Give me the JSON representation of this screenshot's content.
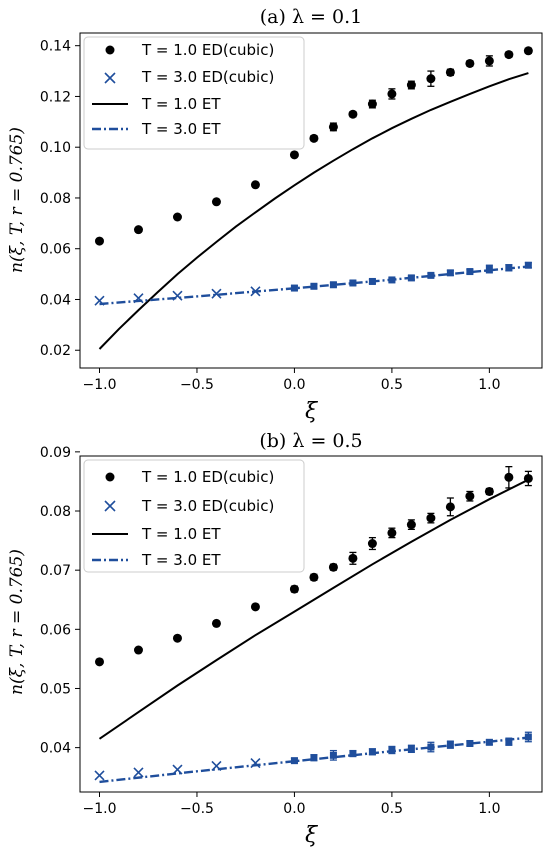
{
  "colors": {
    "black": "#000000",
    "blue": "#1f4e9c"
  },
  "chart_data": [
    {
      "type": "line",
      "title": "(a) λ = 0.1",
      "xlabel": "ξ",
      "ylabel": "n(ξ, T, r = 0.765)",
      "xlim": [
        -1.1,
        1.27
      ],
      "ylim": [
        0.013,
        0.145
      ],
      "xticks": [
        -1.0,
        -0.5,
        0.0,
        0.5,
        1.0
      ],
      "xtick_labels": [
        "−1.0",
        "−0.5",
        "0.0",
        "0.5",
        "1.0"
      ],
      "yticks": [
        0.02,
        0.04,
        0.06,
        0.08,
        0.1,
        0.12,
        0.14
      ],
      "ytick_labels": [
        "0.02",
        "0.04",
        "0.06",
        "0.08",
        "0.10",
        "0.12",
        "0.14"
      ],
      "legend_position": "top-left",
      "series": [
        {
          "name": "T = 1.0 ED(cubic)",
          "marker": "dot",
          "color": "#000000",
          "x": [
            -1.0,
            -0.8,
            -0.6,
            -0.4,
            -0.2,
            0.0,
            0.1,
            0.2,
            0.3,
            0.4,
            0.5,
            0.6,
            0.7,
            0.8,
            0.9,
            1.0,
            1.1,
            1.2
          ],
          "y": [
            0.063,
            0.0675,
            0.0725,
            0.0785,
            0.0852,
            0.097,
            0.1035,
            0.108,
            0.113,
            0.117,
            0.121,
            0.1245,
            0.127,
            0.1295,
            0.133,
            0.134,
            0.1365,
            0.138
          ],
          "err": [
            0,
            0,
            0,
            0,
            0,
            0.0008,
            0.001,
            0.0015,
            0.001,
            0.0015,
            0.002,
            0.0015,
            0.003,
            0.0012,
            0.001,
            0.002,
            0.001,
            0.001
          ]
        },
        {
          "name": "T = 3.0 ED(cubic)",
          "marker": "x",
          "color": "#1f4e9c",
          "x": [
            -1.0,
            -0.8,
            -0.6,
            -0.4,
            -0.2,
            0.0,
            0.1,
            0.2,
            0.3,
            0.4,
            0.5,
            0.6,
            0.7,
            0.8,
            0.9,
            1.0,
            1.1,
            1.2
          ],
          "y": [
            0.0395,
            0.0405,
            0.0415,
            0.0423,
            0.0432,
            0.0445,
            0.0452,
            0.0458,
            0.0465,
            0.0471,
            0.0477,
            0.0485,
            0.0495,
            0.0505,
            0.051,
            0.052,
            0.0525,
            0.0535
          ],
          "err": [
            0,
            0,
            0,
            0,
            0,
            0.0008,
            0.0008,
            0.0008,
            0.0008,
            0.0008,
            0.0008,
            0.0008,
            0.0008,
            0.001,
            0.0008,
            0.0015,
            0.0012,
            0.001
          ]
        },
        {
          "name": "T = 1.0 ET",
          "marker": "line-solid",
          "color": "#000000",
          "x": [
            -1.0,
            -0.9,
            -0.8,
            -0.7,
            -0.6,
            -0.5,
            -0.4,
            -0.3,
            -0.2,
            -0.1,
            0.0,
            0.1,
            0.2,
            0.3,
            0.4,
            0.5,
            0.6,
            0.7,
            0.8,
            0.9,
            1.0,
            1.1,
            1.2
          ],
          "y": [
            0.0205,
            0.0284,
            0.0358,
            0.043,
            0.05,
            0.0565,
            0.0627,
            0.0687,
            0.0743,
            0.0798,
            0.085,
            0.09,
            0.0947,
            0.0992,
            0.1035,
            0.1075,
            0.1112,
            0.1147,
            0.1179,
            0.121,
            0.124,
            0.1268,
            0.1292
          ]
        },
        {
          "name": "T = 3.0 ET",
          "marker": "line-dashdot",
          "color": "#1f4e9c",
          "x": [
            -1.0,
            -0.5,
            0.0,
            0.5,
            1.0,
            1.2
          ],
          "y": [
            0.0382,
            0.0412,
            0.0444,
            0.0478,
            0.0515,
            0.053
          ]
        }
      ]
    },
    {
      "type": "line",
      "title": "(b) λ = 0.5",
      "xlabel": "ξ",
      "ylabel": "n(ξ, T, r = 0.765)",
      "xlim": [
        -1.1,
        1.27
      ],
      "ylim": [
        0.0325,
        0.0893
      ],
      "xticks": [
        -1.0,
        -0.5,
        0.0,
        0.5,
        1.0
      ],
      "xtick_labels": [
        "−1.0",
        "−0.5",
        "0.0",
        "0.5",
        "1.0"
      ],
      "yticks": [
        0.04,
        0.05,
        0.06,
        0.07,
        0.08,
        0.09
      ],
      "ytick_labels": [
        "0.04",
        "0.05",
        "0.06",
        "0.07",
        "0.08",
        "0.09"
      ],
      "legend_position": "top-left",
      "series": [
        {
          "name": "T = 1.0 ED(cubic)",
          "marker": "dot",
          "color": "#000000",
          "x": [
            -1.0,
            -0.8,
            -0.6,
            -0.4,
            -0.2,
            0.0,
            0.1,
            0.2,
            0.3,
            0.4,
            0.5,
            0.6,
            0.7,
            0.8,
            0.9,
            1.0,
            1.1,
            1.2
          ],
          "y": [
            0.0545,
            0.0565,
            0.0585,
            0.061,
            0.0638,
            0.0668,
            0.0688,
            0.0705,
            0.072,
            0.0745,
            0.0763,
            0.0777,
            0.0788,
            0.0807,
            0.0825,
            0.0833,
            0.0857,
            0.0855
          ],
          "err": [
            0,
            0,
            0,
            0,
            0,
            0.0005,
            0.0005,
            0.0005,
            0.001,
            0.001,
            0.0008,
            0.0008,
            0.0008,
            0.0015,
            0.0008,
            0.0005,
            0.0018,
            0.0012
          ]
        },
        {
          "name": "T = 3.0 ED(cubic)",
          "marker": "x",
          "color": "#1f4e9c",
          "x": [
            -1.0,
            -0.8,
            -0.6,
            -0.4,
            -0.2,
            0.0,
            0.1,
            0.2,
            0.3,
            0.4,
            0.5,
            0.6,
            0.7,
            0.8,
            0.9,
            1.0,
            1.1,
            1.2
          ],
          "y": [
            0.0353,
            0.0358,
            0.0363,
            0.0369,
            0.0374,
            0.0378,
            0.0383,
            0.0387,
            0.039,
            0.0393,
            0.0396,
            0.0398,
            0.0401,
            0.0405,
            0.0407,
            0.0409,
            0.041,
            0.0418
          ],
          "err": [
            0,
            0,
            0,
            0,
            0,
            0.0004,
            0.0005,
            0.0008,
            0.0005,
            0.0005,
            0.0006,
            0.0006,
            0.0008,
            0.0006,
            0.0004,
            0.0004,
            0.0006,
            0.0008
          ]
        },
        {
          "name": "T = 1.0 ET",
          "marker": "line-solid",
          "color": "#000000",
          "x": [
            -1.0,
            -0.8,
            -0.6,
            -0.4,
            -0.2,
            0.0,
            0.2,
            0.4,
            0.6,
            0.8,
            1.0,
            1.2
          ],
          "y": [
            0.0415,
            0.046,
            0.0505,
            0.0548,
            0.059,
            0.063,
            0.067,
            0.071,
            0.0748,
            0.0785,
            0.082,
            0.0853
          ]
        },
        {
          "name": "T = 3.0 ET",
          "marker": "line-dashdot",
          "color": "#1f4e9c",
          "x": [
            -1.0,
            -0.5,
            0.0,
            0.5,
            1.0,
            1.2
          ],
          "y": [
            0.0342,
            0.036,
            0.0377,
            0.0394,
            0.041,
            0.0417
          ]
        }
      ]
    }
  ]
}
